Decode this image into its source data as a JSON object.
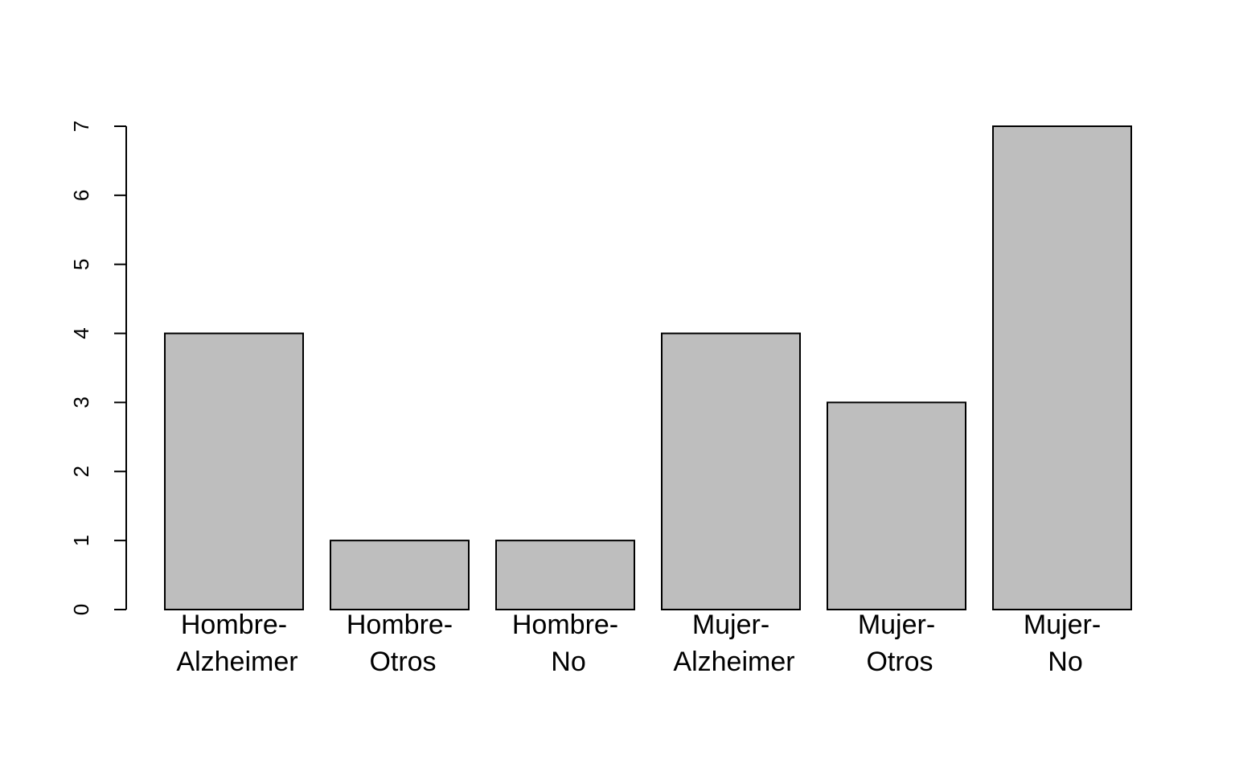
{
  "chart_data": {
    "type": "bar",
    "categories": [
      [
        "Hombre-",
        "Alzheimer"
      ],
      [
        "Hombre-",
        "Otros"
      ],
      [
        "Hombre-",
        "No"
      ],
      [
        "Mujer-",
        "Alzheimer"
      ],
      [
        "Mujer-",
        "Otros"
      ],
      [
        "Mujer-",
        "No"
      ]
    ],
    "values": [
      4,
      1,
      1,
      4,
      3,
      7
    ],
    "title": "",
    "xlabel": "",
    "ylabel": "",
    "ylim": [
      0,
      7
    ],
    "yticks": [
      0,
      1,
      2,
      3,
      4,
      5,
      6,
      7
    ],
    "grid": false,
    "colors": {
      "bar_fill": "#bebebe",
      "bar_stroke": "#000000",
      "axis": "#000000",
      "background": "#ffffff"
    }
  }
}
